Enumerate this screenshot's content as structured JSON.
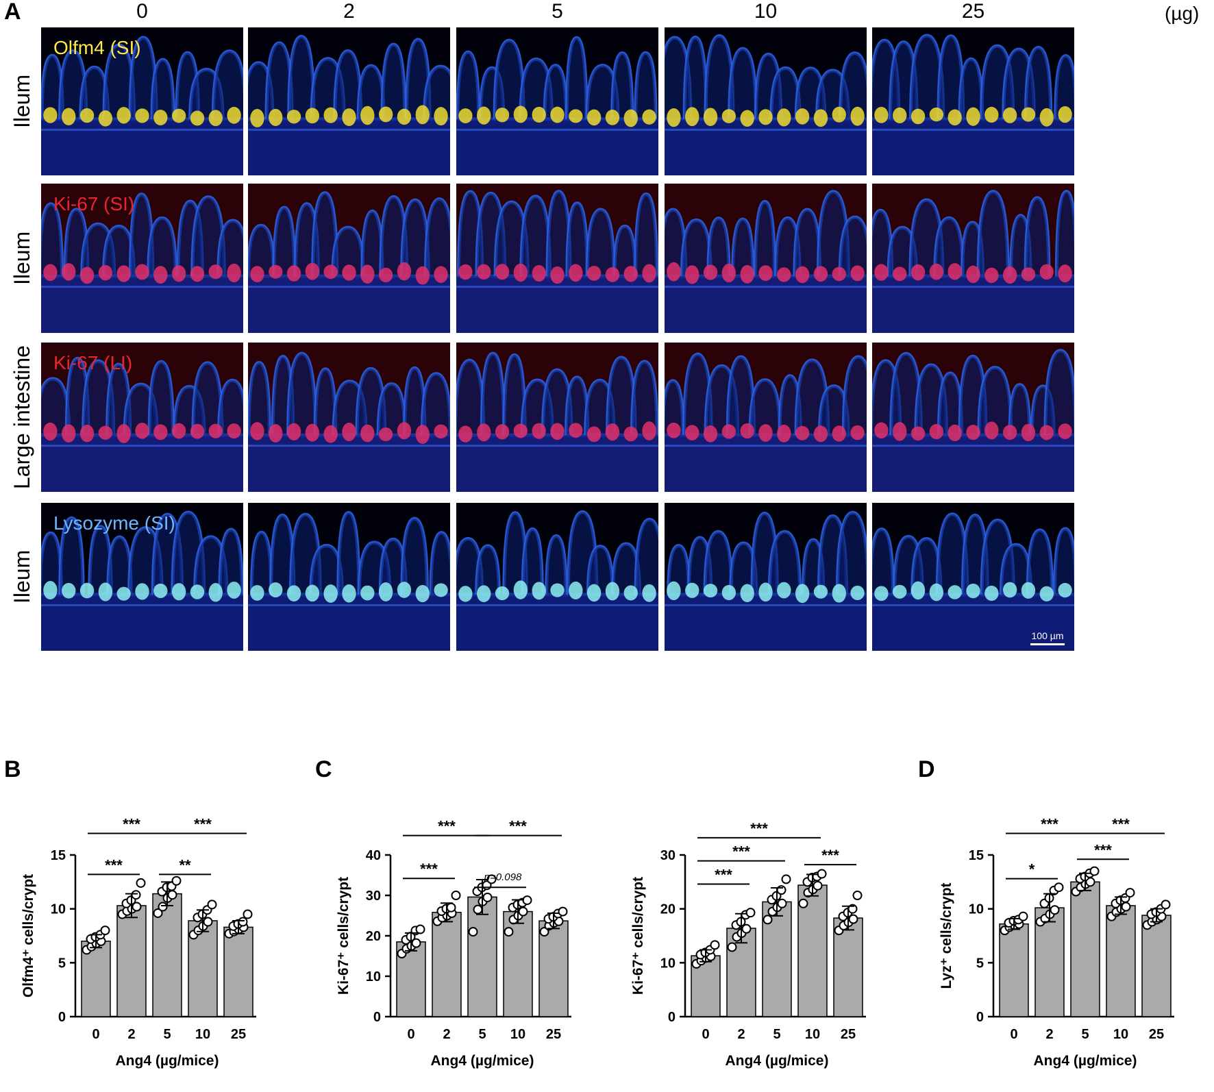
{
  "panel_a": {
    "letter": "A",
    "doses": [
      "0",
      "2",
      "5",
      "10",
      "25"
    ],
    "unit": "(µg)",
    "rows": [
      {
        "label": "Ileum",
        "stain": "Olfm4 (SI)",
        "stain_color": "#ffe84a",
        "band_color": "#f0dc30"
      },
      {
        "label": "Ileum",
        "stain": "Ki-67 (SI)",
        "stain_color": "#e8262e",
        "band_color": "#e0306a"
      },
      {
        "label": "Large intestine",
        "stain": "Ki-67 (LI)",
        "stain_color": "#e8262e",
        "band_color": "#e0306a"
      },
      {
        "label": "Ileum",
        "stain": "Lysozyme (SI)",
        "stain_color": "#6fb6ff",
        "band_color": "#8ff0f0"
      }
    ],
    "scale_bar": "100 µm"
  },
  "panel_b": {
    "letter": "B"
  },
  "panel_c": {
    "letter": "C"
  },
  "panel_d": {
    "letter": "D"
  },
  "chart_data": [
    {
      "type": "bar",
      "panel": "B",
      "categories": [
        "0",
        "2",
        "5",
        "10",
        "25"
      ],
      "values": [
        7.0,
        10.3,
        11.4,
        8.9,
        8.3
      ],
      "errors": [
        0.6,
        1.1,
        1.1,
        1.0,
        0.6
      ],
      "points": [
        [
          6.2,
          6.5,
          6.8,
          7.0,
          7.2,
          7.4,
          7.6,
          8.0
        ],
        [
          9.5,
          9.8,
          10.0,
          10.2,
          10.5,
          10.8,
          11.3,
          12.4
        ],
        [
          9.6,
          10.2,
          11.0,
          11.3,
          11.6,
          12.0,
          12.1,
          12.6
        ],
        [
          7.6,
          8.0,
          8.4,
          8.8,
          9.2,
          9.5,
          9.9,
          10.4
        ],
        [
          7.7,
          7.9,
          8.1,
          8.3,
          8.4,
          8.6,
          8.8,
          9.5
        ]
      ],
      "ylabel": "Olfm4⁺ cells/crypt",
      "xlabel": "Ang4 (µg/mice)",
      "ylim": [
        0,
        15
      ],
      "yticks": [
        "0",
        "5",
        "10",
        "15"
      ],
      "bar_color": "#aaaaaa",
      "sig": [
        {
          "from": 0,
          "to": 2,
          "label": "***",
          "y": 17.0
        },
        {
          "from": 2,
          "to": 4,
          "label": "***",
          "y": 17.0
        },
        {
          "from": 0,
          "to": 1,
          "label": "***",
          "y": 13.2
        },
        {
          "from": 2,
          "to": 3,
          "label": "**",
          "y": 13.2
        }
      ]
    },
    {
      "type": "bar",
      "panel": "C-left",
      "categories": [
        "0",
        "2",
        "5",
        "10",
        "25"
      ],
      "values": [
        18.5,
        25.8,
        29.6,
        26.0,
        23.7
      ],
      "errors": [
        2.2,
        2.3,
        4.3,
        2.9,
        1.9
      ],
      "points": [
        [
          15.6,
          16.8,
          17.5,
          18.2,
          19.0,
          19.8,
          21.3,
          21.6
        ],
        [
          23.6,
          24.5,
          25.0,
          25.6,
          26.1,
          26.7,
          27.0,
          30.0
        ],
        [
          21.0,
          26.5,
          28.5,
          29.5,
          31.0,
          32.0,
          32.5,
          34.0
        ],
        [
          21.0,
          24.0,
          25.0,
          26.0,
          27.0,
          27.7,
          28.2,
          28.8
        ],
        [
          21.0,
          22.5,
          23.2,
          23.6,
          24.2,
          24.7,
          25.5,
          26.0
        ]
      ],
      "ylabel": "Ki-67⁺ cells/crypt",
      "xlabel": "Ang4 (µg/mice)",
      "ylim": [
        0,
        40
      ],
      "yticks": [
        "0",
        "10",
        "20",
        "30",
        "40"
      ],
      "bar_color": "#aaaaaa",
      "pval": "p=0.098",
      "sig": [
        {
          "from": 0,
          "to": 2,
          "label": "***",
          "y": 44.8
        },
        {
          "from": 2,
          "to": 4,
          "label": "***",
          "y": 44.8
        },
        {
          "from": 0,
          "to": 1,
          "label": "***",
          "y": 34.2
        },
        {
          "from": 2,
          "to": 3,
          "label": "",
          "y": 32.0
        }
      ]
    },
    {
      "type": "bar",
      "panel": "C-right",
      "categories": [
        "0",
        "2",
        "5",
        "10",
        "25"
      ],
      "values": [
        11.3,
        16.4,
        21.3,
        24.4,
        18.3
      ],
      "errors": [
        1.1,
        2.7,
        2.6,
        2.0,
        2.2
      ],
      "points": [
        [
          9.8,
          10.4,
          10.9,
          11.2,
          11.5,
          11.9,
          12.4,
          13.3
        ],
        [
          12.9,
          14.8,
          15.5,
          16.3,
          17.0,
          17.6,
          18.9,
          19.3
        ],
        [
          18.0,
          19.5,
          20.3,
          21.0,
          21.7,
          22.4,
          23.5,
          25.5
        ],
        [
          21.0,
          23.0,
          23.6,
          24.3,
          25.0,
          25.8,
          26.0,
          26.5
        ],
        [
          16.0,
          16.9,
          17.5,
          18.1,
          18.6,
          19.3,
          20.0,
          22.5
        ]
      ],
      "ylabel": "Ki-67⁺ cells/crypt",
      "xlabel": "Ang4 (µg/mice)",
      "ylim": [
        0,
        30
      ],
      "yticks": [
        "0",
        "10",
        "20",
        "30"
      ],
      "bar_color": "#aaaaaa",
      "sig": [
        {
          "from": 0,
          "to": 3,
          "label": "***",
          "y": 33.2
        },
        {
          "from": 0,
          "to": 2,
          "label": "***",
          "y": 28.9
        },
        {
          "from": 0,
          "to": 1,
          "label": "***",
          "y": 24.6
        },
        {
          "from": 3,
          "to": 4,
          "label": "***",
          "y": 28.2
        }
      ]
    },
    {
      "type": "bar",
      "panel": "D",
      "categories": [
        "0",
        "2",
        "5",
        "10",
        "25"
      ],
      "values": [
        8.6,
        10.1,
        12.5,
        10.3,
        9.4
      ],
      "errors": [
        0.5,
        1.3,
        0.8,
        0.8,
        0.6
      ],
      "points": [
        [
          8.0,
          8.3,
          8.5,
          8.6,
          8.7,
          8.9,
          9.0,
          9.3
        ],
        [
          8.8,
          9.1,
          9.5,
          9.9,
          10.5,
          11.0,
          11.7,
          12.0
        ],
        [
          11.6,
          12.0,
          12.3,
          12.5,
          12.8,
          13.0,
          13.3,
          13.5
        ],
        [
          9.3,
          9.7,
          10.0,
          10.2,
          10.5,
          10.8,
          11.0,
          11.5
        ],
        [
          8.5,
          8.8,
          9.0,
          9.3,
          9.5,
          9.7,
          10.0,
          10.4
        ]
      ],
      "ylabel": "Lyz⁺ cells/crypt",
      "xlabel": "Ang4 (µg/mice)",
      "ylim": [
        0,
        15
      ],
      "yticks": [
        "0",
        "5",
        "10",
        "15"
      ],
      "bar_color": "#aaaaaa",
      "sig": [
        {
          "from": 0,
          "to": 2,
          "label": "***",
          "y": 17.0
        },
        {
          "from": 2,
          "to": 4,
          "label": "***",
          "y": 17.0
        },
        {
          "from": 0,
          "to": 1,
          "label": "*",
          "y": 12.8
        },
        {
          "from": 2,
          "to": 3,
          "label": "***",
          "y": 14.6
        }
      ]
    }
  ]
}
